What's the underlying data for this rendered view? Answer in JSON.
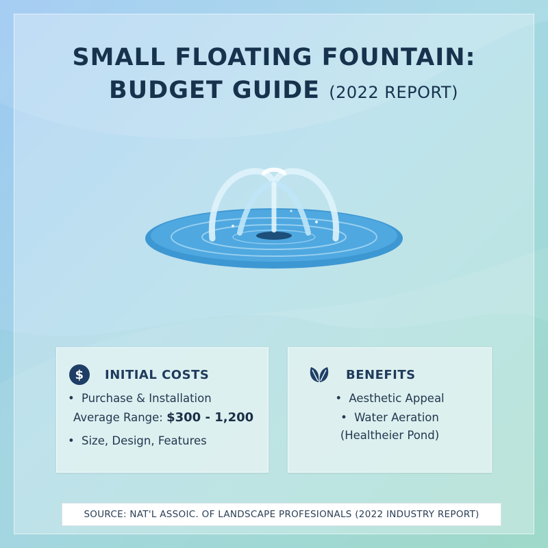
{
  "title": {
    "line1": "SMALL FLOATING FOUNTAIN:",
    "line2": "BUDGET GUIDE",
    "line2_suffix": "(2022 REPORT)"
  },
  "colors": {
    "title": "#17324d",
    "water": "#4aa3dc",
    "water_dark": "#2a7fb8",
    "icon": "#1e3e66"
  },
  "initial_costs": {
    "icon": "dollar-icon",
    "heading": "INITIAL COSTS",
    "item1": "Purchase & Installation",
    "range_label": "Average Range:",
    "range_value": "$300 - 1,200",
    "item2": "Size, Design, Features"
  },
  "benefits": {
    "icon": "leaf-icon",
    "heading": "BENEFITS",
    "item1": "Aesthetic Appeal",
    "item2": "Water Aeration",
    "item2_note": "(Healtheier Pond)"
  },
  "source": "SOURCE: NAT'L ASSOIC. OF LANDSCAPE PROFESIONALS (2022 INDUSTRY REPORT)"
}
